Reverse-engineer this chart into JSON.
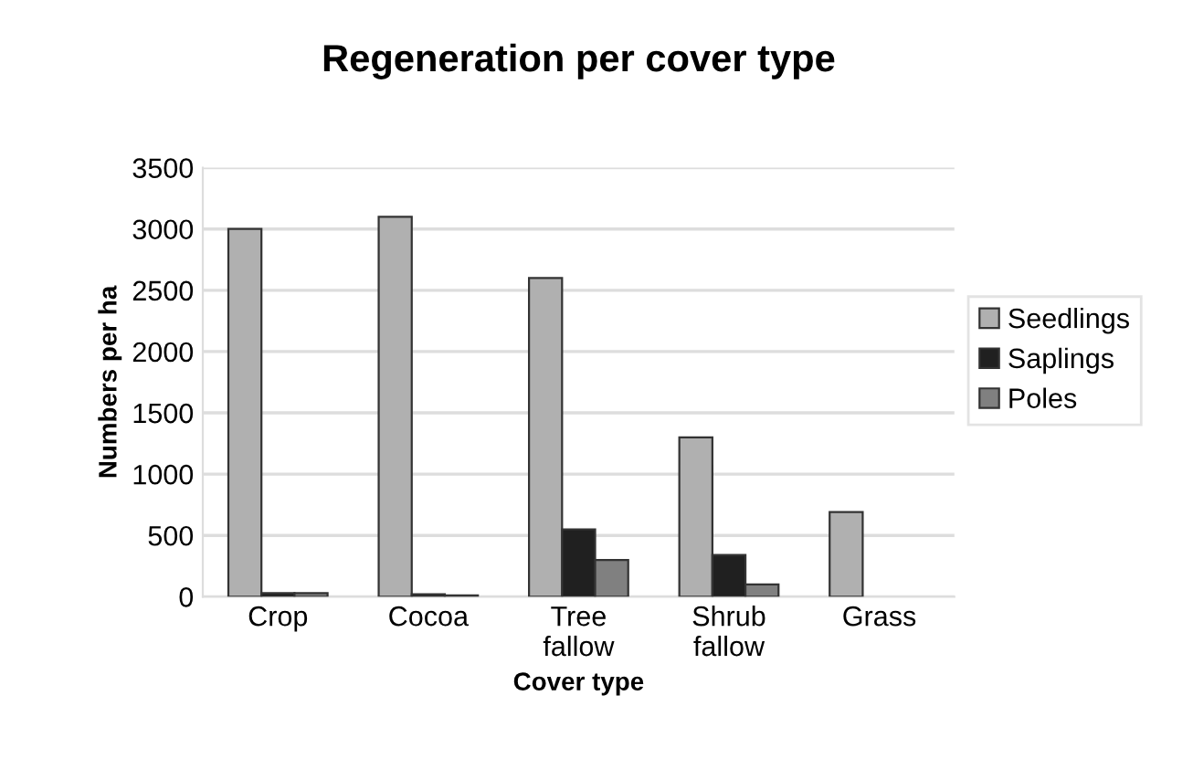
{
  "chart_data": {
    "type": "bar",
    "title": "Regeneration per cover type",
    "xlabel": "Cover type",
    "ylabel": "Numbers per ha",
    "categories": [
      "Crop",
      "Cocoa",
      "Tree\nfallow",
      "Shrub\nfallow",
      "Grass"
    ],
    "series": [
      {
        "name": "Seedlings",
        "color": "#b0b0b0",
        "values": [
          3000,
          3100,
          2600,
          1300,
          690
        ]
      },
      {
        "name": "Saplings",
        "color": "#202020",
        "values": [
          30,
          20,
          550,
          340,
          null
        ]
      },
      {
        "name": "Poles",
        "color": "#808080",
        "values": [
          30,
          10,
          300,
          100,
          null
        ]
      }
    ],
    "ylim": [
      0,
      3500
    ],
    "yticks": [
      0,
      500,
      1000,
      1500,
      2000,
      2500,
      3000,
      3500
    ],
    "grid": "y",
    "legend": "right"
  }
}
